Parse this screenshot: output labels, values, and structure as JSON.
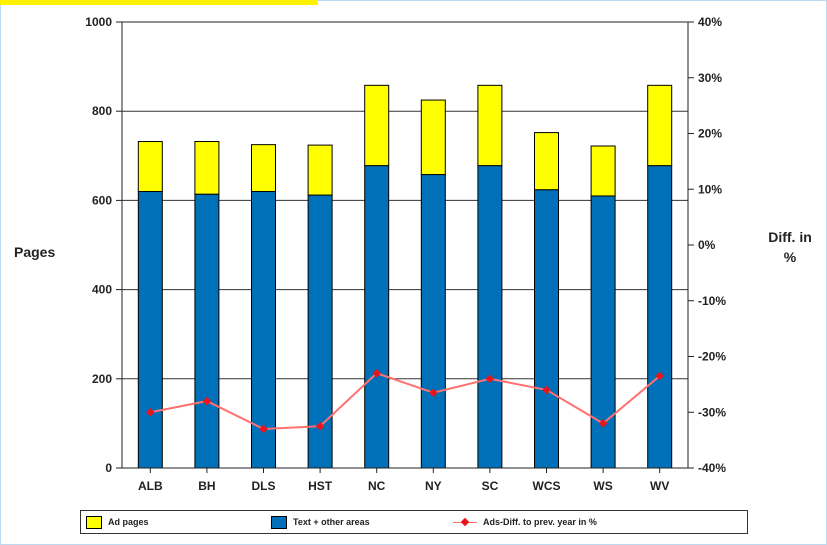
{
  "chart_data": {
    "type": "bar",
    "stacked": true,
    "categories": [
      "ALB",
      "BH",
      "DLS",
      "HST",
      "NC",
      "NY",
      "SC",
      "WCS",
      "WS",
      "WV"
    ],
    "series": [
      {
        "name": "Text + other areas",
        "axis": "left",
        "color": "#0070b8",
        "values": [
          620,
          614,
          620,
          612,
          678,
          658,
          678,
          624,
          610,
          678
        ]
      },
      {
        "name": "Ad pages",
        "axis": "left",
        "color": "#ffff00",
        "values": [
          112,
          118,
          105,
          112,
          180,
          167,
          180,
          128,
          112,
          180
        ]
      },
      {
        "name": "Ads-Diff. to prev. year in %",
        "axis": "right",
        "type": "line",
        "color": "#e8141e",
        "values": [
          -30,
          -28,
          -33,
          -32.5,
          -23,
          -26.5,
          -24,
          -26,
          -32,
          -23.5
        ]
      }
    ],
    "ylabel": "Pages",
    "ylim": [
      0,
      1000
    ],
    "yticks": [
      "0",
      "200",
      "400",
      "600",
      "800",
      "1000"
    ],
    "y2label": "Diff. in %",
    "y2lim": [
      -40,
      40
    ],
    "y2ticks": [
      "-40%",
      "-30%",
      "-20%",
      "-10%",
      "0%",
      "10%",
      "20%",
      "30%",
      "40%"
    ],
    "grid": true,
    "legend": "bottom"
  }
}
